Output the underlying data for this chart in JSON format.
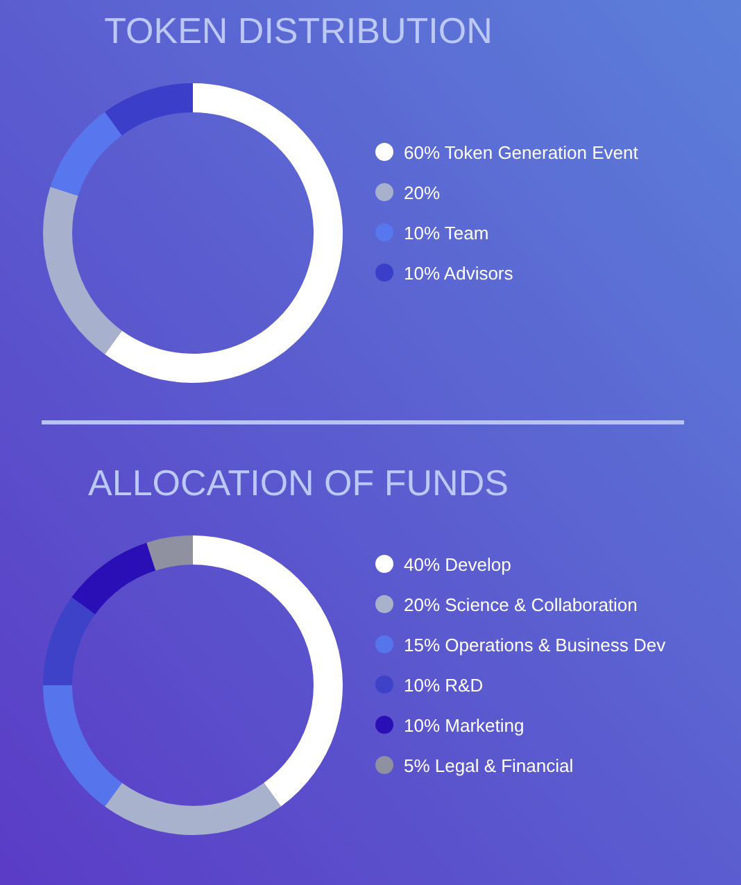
{
  "chart_data": [
    {
      "type": "donut",
      "title": "TOKEN DISTRIBUTION",
      "categories": [
        "60% Token Generation Event",
        "20%",
        "10% Team",
        "10% Advisors"
      ],
      "values": [
        60,
        20,
        10,
        10
      ],
      "colors": [
        "#ffffff",
        "#a7b0cc",
        "#5877ee",
        "#3a3ec9"
      ],
      "legend": "right"
    },
    {
      "type": "donut",
      "title": "ALLOCATION OF FUNDS",
      "categories": [
        "40% Develop",
        "20% Science & Collaboration",
        "15% Operations & Business Dev",
        "10% R&D",
        "10% Marketing",
        "5% Legal & Financial"
      ],
      "values": [
        40,
        20,
        15,
        10,
        10,
        5
      ],
      "colors": [
        "#ffffff",
        "#a9b2cc",
        "#5675ec",
        "#3d42c8",
        "#2a0fb6",
        "#8f90a0"
      ],
      "legend": "right"
    }
  ]
}
